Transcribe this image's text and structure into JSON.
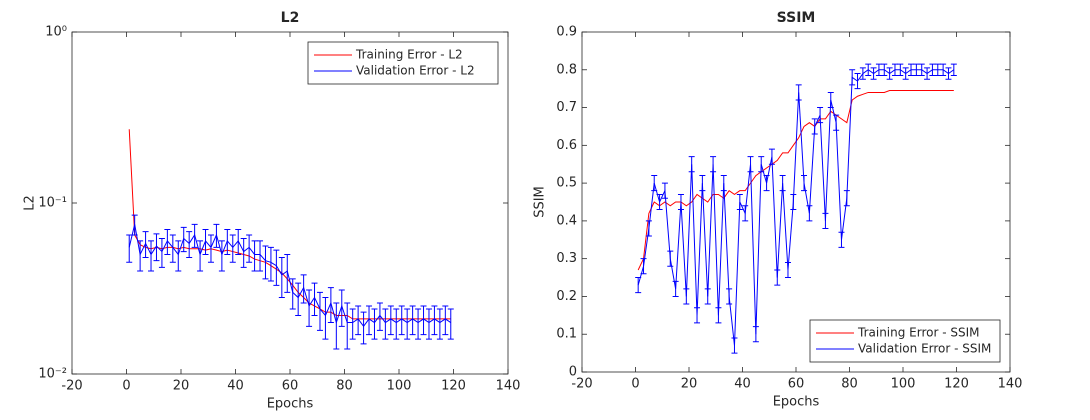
{
  "chart_data": [
    {
      "type": "line",
      "title": "L2",
      "xlabel": "Epochs",
      "ylabel": "L2",
      "yscale": "log",
      "legend": "northeast",
      "xlim": [
        -20,
        140
      ],
      "xticks": [
        -20,
        0,
        20,
        40,
        60,
        80,
        100,
        120,
        140
      ],
      "ylim": [
        0.01,
        1
      ],
      "yticks": [
        {
          "value": 0.01,
          "label": "10⁻²"
        },
        {
          "value": 0.1,
          "label": "10⁻¹"
        },
        {
          "value": 1,
          "label": "10⁰"
        }
      ],
      "x": [
        1,
        3,
        5,
        7,
        9,
        11,
        13,
        15,
        17,
        19,
        21,
        23,
        25,
        27,
        29,
        31,
        33,
        35,
        37,
        39,
        41,
        43,
        45,
        47,
        49,
        51,
        53,
        55,
        57,
        59,
        61,
        63,
        65,
        67,
        69,
        71,
        73,
        75,
        77,
        79,
        81,
        83,
        85,
        87,
        89,
        91,
        93,
        95,
        97,
        99,
        101,
        103,
        105,
        107,
        109,
        111,
        113,
        115,
        117,
        119
      ],
      "series": [
        {
          "name": "Training Error - L2",
          "color": "#ff0000",
          "values": [
            0.27,
            0.065,
            0.057,
            0.055,
            0.054,
            0.055,
            0.054,
            0.055,
            0.055,
            0.054,
            0.055,
            0.054,
            0.054,
            0.054,
            0.053,
            0.054,
            0.053,
            0.052,
            0.053,
            0.052,
            0.051,
            0.05,
            0.049,
            0.047,
            0.046,
            0.045,
            0.043,
            0.041,
            0.039,
            0.036,
            0.033,
            0.03,
            0.028,
            0.026,
            0.025,
            0.024,
            0.023,
            0.023,
            0.022,
            0.022,
            0.022,
            0.021,
            0.021,
            0.021,
            0.021,
            0.021,
            0.021,
            0.021,
            0.021,
            0.021,
            0.021,
            0.021,
            0.021,
            0.021,
            0.021,
            0.021,
            0.021,
            0.021,
            0.021,
            0.021
          ]
        },
        {
          "name": "Validation Error - L2",
          "color": "#0000ff",
          "values": [
            0.055,
            0.075,
            0.05,
            0.058,
            0.05,
            0.056,
            0.052,
            0.06,
            0.055,
            0.05,
            0.062,
            0.058,
            0.065,
            0.05,
            0.06,
            0.055,
            0.065,
            0.05,
            0.06,
            0.055,
            0.06,
            0.052,
            0.055,
            0.05,
            0.05,
            0.046,
            0.045,
            0.043,
            0.038,
            0.04,
            0.03,
            0.028,
            0.032,
            0.025,
            0.028,
            0.024,
            0.022,
            0.026,
            0.02,
            0.025,
            0.02,
            0.02,
            0.021,
            0.019,
            0.021,
            0.02,
            0.022,
            0.02,
            0.021,
            0.02,
            0.021,
            0.02,
            0.021,
            0.02,
            0.021,
            0.02,
            0.021,
            0.02,
            0.021,
            0.02
          ],
          "errors": [
            0.01,
            0.01,
            0.01,
            0.01,
            0.01,
            0.01,
            0.01,
            0.01,
            0.01,
            0.01,
            0.01,
            0.01,
            0.01,
            0.01,
            0.01,
            0.01,
            0.01,
            0.01,
            0.01,
            0.01,
            0.01,
            0.01,
            0.01,
            0.01,
            0.01,
            0.01,
            0.01,
            0.01,
            0.01,
            0.01,
            0.006,
            0.006,
            0.006,
            0.006,
            0.006,
            0.006,
            0.006,
            0.006,
            0.006,
            0.006,
            0.006,
            0.004,
            0.004,
            0.004,
            0.004,
            0.004,
            0.004,
            0.004,
            0.004,
            0.004,
            0.004,
            0.004,
            0.004,
            0.004,
            0.004,
            0.004,
            0.004,
            0.004,
            0.004,
            0.004
          ]
        }
      ]
    },
    {
      "type": "line",
      "title": "SSIM",
      "xlabel": "Epochs",
      "ylabel": "SSIM",
      "legend": "southeast",
      "xlim": [
        -20,
        140
      ],
      "xticks": [
        -20,
        0,
        20,
        40,
        60,
        80,
        100,
        120,
        140
      ],
      "ylim": [
        0,
        0.9
      ],
      "yticks": [
        0,
        0.1,
        0.2,
        0.3,
        0.4,
        0.5,
        0.6,
        0.7,
        0.8,
        0.9
      ],
      "x": [
        1,
        3,
        5,
        7,
        9,
        11,
        13,
        15,
        17,
        19,
        21,
        23,
        25,
        27,
        29,
        31,
        33,
        35,
        37,
        39,
        41,
        43,
        45,
        47,
        49,
        51,
        53,
        55,
        57,
        59,
        61,
        63,
        65,
        67,
        69,
        71,
        73,
        75,
        77,
        79,
        81,
        83,
        85,
        87,
        89,
        91,
        93,
        95,
        97,
        99,
        101,
        103,
        105,
        107,
        109,
        111,
        113,
        115,
        117,
        119
      ],
      "series": [
        {
          "name": "Training Error - SSIM",
          "color": "#ff0000",
          "values": [
            0.27,
            0.3,
            0.42,
            0.45,
            0.44,
            0.45,
            0.44,
            0.45,
            0.45,
            0.44,
            0.45,
            0.47,
            0.46,
            0.45,
            0.47,
            0.47,
            0.46,
            0.48,
            0.47,
            0.48,
            0.48,
            0.5,
            0.52,
            0.53,
            0.54,
            0.55,
            0.56,
            0.58,
            0.58,
            0.6,
            0.62,
            0.65,
            0.66,
            0.65,
            0.67,
            0.67,
            0.69,
            0.68,
            0.67,
            0.66,
            0.72,
            0.73,
            0.735,
            0.74,
            0.74,
            0.74,
            0.74,
            0.745,
            0.745,
            0.745,
            0.745,
            0.745,
            0.745,
            0.745,
            0.745,
            0.745,
            0.745,
            0.745,
            0.745,
            0.745
          ]
        },
        {
          "name": "Validation Error - SSIM",
          "color": "#0000ff",
          "values": [
            0.23,
            0.28,
            0.38,
            0.5,
            0.45,
            0.48,
            0.3,
            0.22,
            0.45,
            0.2,
            0.55,
            0.15,
            0.5,
            0.2,
            0.55,
            0.15,
            0.5,
            0.2,
            0.07,
            0.45,
            0.42,
            0.55,
            0.1,
            0.55,
            0.5,
            0.57,
            0.25,
            0.5,
            0.27,
            0.45,
            0.74,
            0.5,
            0.42,
            0.65,
            0.68,
            0.4,
            0.72,
            0.66,
            0.35,
            0.46,
            0.78,
            0.77,
            0.79,
            0.8,
            0.79,
            0.8,
            0.8,
            0.79,
            0.8,
            0.8,
            0.79,
            0.8,
            0.8,
            0.8,
            0.79,
            0.8,
            0.8,
            0.8,
            0.79,
            0.8
          ],
          "errors": [
            0.02,
            0.02,
            0.02,
            0.02,
            0.02,
            0.02,
            0.02,
            0.02,
            0.02,
            0.02,
            0.02,
            0.02,
            0.02,
            0.02,
            0.02,
            0.02,
            0.02,
            0.02,
            0.02,
            0.02,
            0.02,
            0.02,
            0.02,
            0.02,
            0.02,
            0.02,
            0.02,
            0.02,
            0.02,
            0.02,
            0.02,
            0.02,
            0.02,
            0.02,
            0.02,
            0.02,
            0.02,
            0.02,
            0.02,
            0.02,
            0.02,
            0.02,
            0.015,
            0.015,
            0.015,
            0.015,
            0.015,
            0.015,
            0.015,
            0.015,
            0.015,
            0.015,
            0.015,
            0.015,
            0.015,
            0.015,
            0.015,
            0.015,
            0.015,
            0.015
          ]
        }
      ]
    }
  ]
}
